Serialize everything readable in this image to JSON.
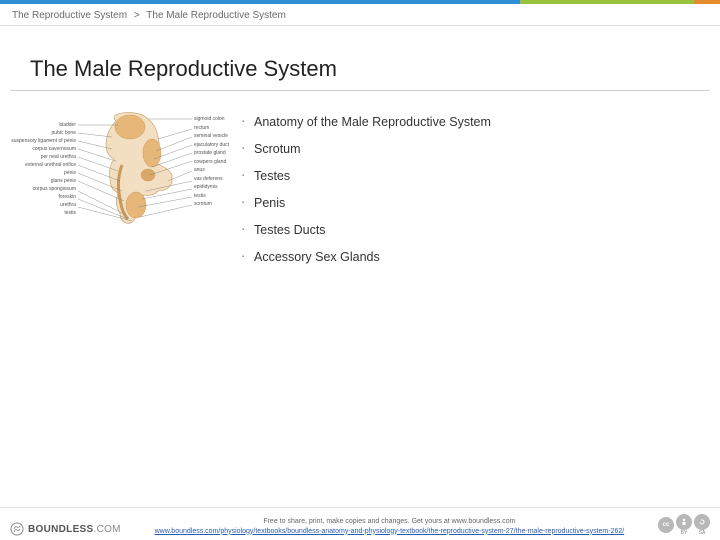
{
  "accent_colors": [
    "#2f8fd4",
    "#9ac23c",
    "#e58a2e"
  ],
  "breadcrumb": {
    "parent": "The Reproductive System",
    "child": "The Male Reproductive System"
  },
  "title": "The Male Reproductive System",
  "topics": [
    "Anatomy of the Male Reproductive System",
    "Scrotum",
    "Testes",
    "Penis",
    "Testes Ducts",
    "Accessory Sex Glands"
  ],
  "diagram": {
    "colors": {
      "organ_fill": "#e7b77a",
      "organ_dark": "#c9985a",
      "bladder_fill": "#f2dfc2",
      "line": "#7a7a7a"
    },
    "left_labels": [
      "bladder",
      "pubic bone",
      "suspensory ligament of penis",
      "corpus cavernosum",
      "per neal urethra",
      "external urethral orifice",
      "penis",
      "glans penis",
      "corpus spongiosum",
      "foreskin",
      "urethra",
      "testis"
    ],
    "right_labels": [
      "sigmoid colon",
      "rectum",
      "seminal vesicle",
      "ejaculatory duct",
      "prostate gland",
      "cowpers gland",
      "anus",
      "vas deferens",
      "epididymis",
      "testis",
      "scrotum"
    ]
  },
  "footer": {
    "logo_main": "BOUNDLESS",
    "logo_suffix": ".COM",
    "tagline": "Free to share, print, make copies and changes. Get yours at www.boundless.com",
    "url": "www.boundless.com/physiology/textbooks/boundless-anatomy-and-physiology-textbook/the-reproductive-system-27/the-male-reproductive-system-262/",
    "cc": [
      "cc",
      "BY",
      "SA"
    ]
  }
}
